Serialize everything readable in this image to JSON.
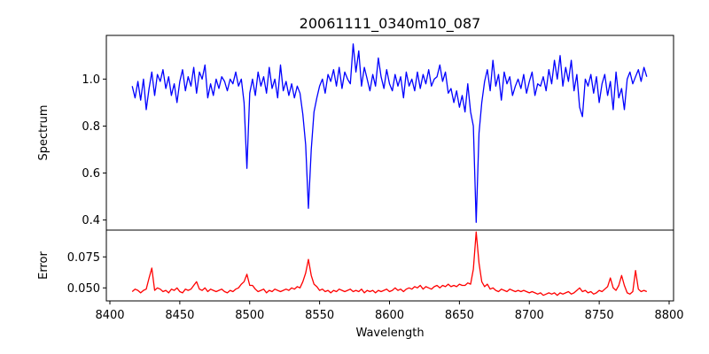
{
  "chart_data": {
    "type": "line",
    "title": "20061111_0340m10_087",
    "xlabel": "Wavelength",
    "xlim": [
      8400,
      8800
    ],
    "xticks": [
      8400,
      8450,
      8500,
      8550,
      8600,
      8650,
      8700,
      8750,
      8800
    ],
    "x_start": 8416,
    "x_step": 2,
    "panels": [
      {
        "name": "spectrum",
        "ylabel": "Spectrum",
        "ylim": [
          0.357,
          1.186
        ],
        "yticks": [
          0.4,
          0.6,
          0.8,
          1.0
        ],
        "ytick_labels": [
          "0.4",
          "0.6",
          "0.8",
          "1.0"
        ],
        "color": "#0000ff",
        "values": [
          0.97,
          0.92,
          0.99,
          0.91,
          1.0,
          0.87,
          0.96,
          1.03,
          0.93,
          1.02,
          0.99,
          1.04,
          0.96,
          1.01,
          0.93,
          0.98,
          0.9,
          0.99,
          1.04,
          0.95,
          1.01,
          0.97,
          1.05,
          0.94,
          1.03,
          1.0,
          1.06,
          0.92,
          0.98,
          0.93,
          1.0,
          0.96,
          1.01,
          0.99,
          0.95,
          1.0,
          0.98,
          1.03,
          0.97,
          1.0,
          0.9,
          0.62,
          0.94,
          1.0,
          0.93,
          1.03,
          0.97,
          1.01,
          0.94,
          1.05,
          0.96,
          1.0,
          0.92,
          1.06,
          0.95,
          0.99,
          0.93,
          0.98,
          0.92,
          0.97,
          0.94,
          0.85,
          0.72,
          0.45,
          0.7,
          0.86,
          0.92,
          0.97,
          1.0,
          0.94,
          1.02,
          0.99,
          1.04,
          0.97,
          1.05,
          0.96,
          1.03,
          1.0,
          0.98,
          1.15,
          1.03,
          1.12,
          0.97,
          1.05,
          1.0,
          0.95,
          1.02,
          0.97,
          1.09,
          1.01,
          0.96,
          1.04,
          0.98,
          0.95,
          1.02,
          0.97,
          1.01,
          0.92,
          1.03,
          0.97,
          1.0,
          0.95,
          1.03,
          0.96,
          1.02,
          0.98,
          1.04,
          0.97,
          1.0,
          1.01,
          1.06,
          0.99,
          1.03,
          0.94,
          0.96,
          0.9,
          0.95,
          0.88,
          0.93,
          0.86,
          0.98,
          0.86,
          0.8,
          0.39,
          0.77,
          0.9,
          0.99,
          1.04,
          0.95,
          1.08,
          0.97,
          1.02,
          0.91,
          1.03,
          0.98,
          1.01,
          0.93,
          0.97,
          1.0,
          0.96,
          1.02,
          0.94,
          0.99,
          1.03,
          0.93,
          0.98,
          0.97,
          1.01,
          0.95,
          1.04,
          0.98,
          1.08,
          1.0,
          1.1,
          0.97,
          1.05,
          0.99,
          1.08,
          0.95,
          1.02,
          0.88,
          0.84,
          1.0,
          0.97,
          1.02,
          0.94,
          1.01,
          0.9,
          0.98,
          1.02,
          0.93,
          0.99,
          0.87,
          1.03,
          0.92,
          0.96,
          0.87,
          1.0,
          1.03,
          0.98,
          1.01,
          1.04,
          0.99,
          1.05,
          1.01
        ]
      },
      {
        "name": "error",
        "ylabel": "Error",
        "ylim": [
          0.0395,
          0.0966
        ],
        "yticks": [
          0.05,
          0.075
        ],
        "ytick_labels": [
          "0.050",
          "0.075"
        ],
        "color": "#ff0000",
        "values": [
          0.047,
          0.049,
          0.048,
          0.046,
          0.048,
          0.049,
          0.058,
          0.066,
          0.048,
          0.05,
          0.049,
          0.047,
          0.048,
          0.046,
          0.049,
          0.048,
          0.05,
          0.047,
          0.046,
          0.049,
          0.048,
          0.049,
          0.052,
          0.055,
          0.049,
          0.048,
          0.05,
          0.047,
          0.049,
          0.048,
          0.047,
          0.048,
          0.049,
          0.047,
          0.046,
          0.048,
          0.047,
          0.049,
          0.05,
          0.053,
          0.055,
          0.061,
          0.052,
          0.052,
          0.049,
          0.047,
          0.048,
          0.049,
          0.046,
          0.048,
          0.047,
          0.049,
          0.048,
          0.047,
          0.048,
          0.049,
          0.048,
          0.05,
          0.049,
          0.051,
          0.05,
          0.055,
          0.062,
          0.073,
          0.06,
          0.053,
          0.051,
          0.048,
          0.049,
          0.047,
          0.048,
          0.046,
          0.048,
          0.047,
          0.049,
          0.048,
          0.047,
          0.048,
          0.049,
          0.047,
          0.048,
          0.047,
          0.049,
          0.046,
          0.048,
          0.047,
          0.048,
          0.046,
          0.048,
          0.047,
          0.048,
          0.049,
          0.047,
          0.048,
          0.05,
          0.048,
          0.049,
          0.047,
          0.049,
          0.05,
          0.049,
          0.051,
          0.05,
          0.052,
          0.049,
          0.051,
          0.05,
          0.049,
          0.051,
          0.052,
          0.05,
          0.052,
          0.051,
          0.053,
          0.051,
          0.052,
          0.051,
          0.053,
          0.052,
          0.052,
          0.054,
          0.053,
          0.065,
          0.095,
          0.07,
          0.055,
          0.051,
          0.053,
          0.049,
          0.05,
          0.048,
          0.047,
          0.049,
          0.048,
          0.047,
          0.049,
          0.048,
          0.047,
          0.048,
          0.047,
          0.048,
          0.047,
          0.046,
          0.047,
          0.046,
          0.045,
          0.046,
          0.044,
          0.045,
          0.046,
          0.045,
          0.046,
          0.044,
          0.046,
          0.045,
          0.046,
          0.047,
          0.045,
          0.046,
          0.048,
          0.05,
          0.047,
          0.048,
          0.046,
          0.047,
          0.045,
          0.046,
          0.048,
          0.047,
          0.049,
          0.051,
          0.058,
          0.05,
          0.048,
          0.052,
          0.06,
          0.052,
          0.046,
          0.045,
          0.047,
          0.064,
          0.049,
          0.047,
          0.048,
          0.047
        ]
      }
    ]
  }
}
